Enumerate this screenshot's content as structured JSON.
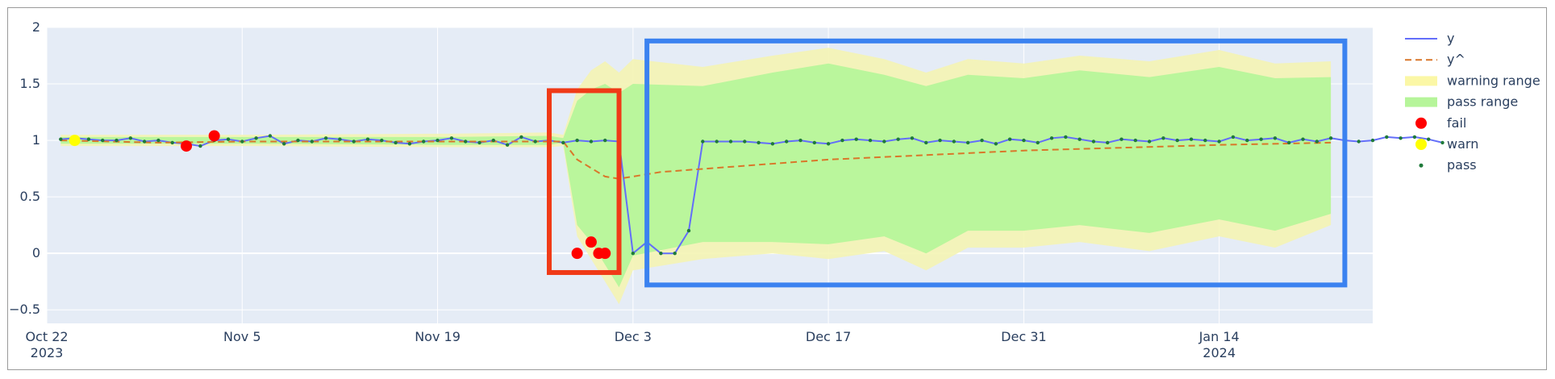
{
  "chart_data": {
    "type": "line",
    "x_axis": {
      "type": "date",
      "range": [
        "2023-10-22",
        "2024-01-25"
      ],
      "ticks": [
        {
          "date": "2023-10-22",
          "label": "Oct 22",
          "sub": "2023"
        },
        {
          "date": "2023-11-05",
          "label": "Nov 5",
          "sub": ""
        },
        {
          "date": "2023-11-19",
          "label": "Nov 19",
          "sub": ""
        },
        {
          "date": "2023-12-03",
          "label": "Dec 3",
          "sub": ""
        },
        {
          "date": "2023-12-17",
          "label": "Dec 17",
          "sub": ""
        },
        {
          "date": "2023-12-31",
          "label": "Dec 31",
          "sub": ""
        },
        {
          "date": "2024-01-14",
          "label": "Jan 14",
          "sub": "2024"
        }
      ]
    },
    "y_axis": {
      "range": [
        -0.62,
        2.0
      ],
      "ticks": [
        -0.5,
        0,
        0.5,
        1,
        1.5,
        2
      ],
      "tick_labels": [
        "−0.5",
        "0",
        "0.5",
        "1",
        "1.5",
        "2"
      ]
    },
    "grid": true,
    "legend_position": "right",
    "legend": [
      {
        "key": "y",
        "label": "y",
        "symbol": "line",
        "color": "#636efa"
      },
      {
        "key": "yhat",
        "label": "y^",
        "symbol": "dash",
        "color": "#d9772a"
      },
      {
        "key": "warning",
        "label": "warning range",
        "symbol": "band",
        "color": "#fbf7a6"
      },
      {
        "key": "pass_range",
        "label": "pass range",
        "symbol": "band",
        "color": "#b6f59a"
      },
      {
        "key": "fail",
        "label": "fail",
        "symbol": "dot-large",
        "color": "#ff0000"
      },
      {
        "key": "warn",
        "label": "warn",
        "symbol": "dot-large",
        "color": "#ffff00"
      },
      {
        "key": "pass",
        "label": "pass",
        "symbol": "dot-small",
        "color": "#1f7a3a"
      }
    ],
    "series": {
      "y": {
        "start": "2023-10-23",
        "values": [
          1.01,
          1.02,
          1.01,
          1.0,
          1.0,
          1.02,
          0.99,
          1.0,
          0.98,
          0.97,
          0.95,
          1.0,
          1.01,
          0.99,
          1.02,
          1.04,
          0.97,
          1.0,
          0.99,
          1.02,
          1.01,
          0.99,
          1.01,
          1.0,
          0.98,
          0.97,
          0.99,
          1.0,
          1.02,
          0.99,
          0.98,
          1.0,
          0.96,
          1.03,
          0.99,
          1.0,
          0.98,
          1.0,
          0.99,
          1.0,
          0.99,
          0.0,
          0.1,
          0.0,
          0.0,
          0.2,
          0.99,
          0.99,
          0.99,
          0.99,
          0.98,
          0.97,
          0.99,
          1.0,
          0.98,
          0.97,
          1.0,
          1.01,
          1.0,
          0.99,
          1.01,
          1.02,
          0.98,
          1.0,
          0.99,
          0.98,
          1.0,
          0.97,
          1.01,
          1.0,
          0.98,
          1.02,
          1.03,
          1.01,
          0.99,
          0.98,
          1.01,
          1.0,
          0.99,
          1.02,
          1.0,
          1.01,
          1.0,
          0.99,
          1.03,
          1.0,
          1.01,
          1.02,
          0.98,
          1.01,
          0.99,
          1.02,
          1.0,
          0.99,
          1.0,
          1.03,
          1.02,
          1.03,
          1.01,
          0.98
        ]
      },
      "yhat": {
        "points": [
          [
            "2023-10-23",
            1.0
          ],
          [
            "2023-10-30",
            0.98
          ],
          [
            "2023-11-05",
            0.99
          ],
          [
            "2023-11-19",
            0.99
          ],
          [
            "2023-11-28",
            0.99
          ],
          [
            "2023-11-29",
            0.83
          ],
          [
            "2023-12-01",
            0.68
          ],
          [
            "2023-12-02",
            0.66
          ],
          [
            "2023-12-05",
            0.72
          ],
          [
            "2023-12-17",
            0.83
          ],
          [
            "2023-12-31",
            0.91
          ],
          [
            "2024-01-14",
            0.96
          ],
          [
            "2024-01-22",
            0.98
          ]
        ]
      },
      "warning": {
        "points": [
          [
            "2023-10-23",
            1.05,
            0.95
          ],
          [
            "2023-11-06",
            1.05,
            0.95
          ],
          [
            "2023-11-20",
            1.06,
            0.94
          ],
          [
            "2023-11-27",
            1.07,
            0.94
          ],
          [
            "2023-11-28",
            1.05,
            0.95
          ],
          [
            "2023-11-29",
            1.45,
            0.15
          ],
          [
            "2023-11-30",
            1.62,
            -0.05
          ],
          [
            "2023-12-01",
            1.7,
            -0.25
          ],
          [
            "2023-12-02",
            1.6,
            -0.45
          ],
          [
            "2023-12-03",
            1.72,
            -0.15
          ],
          [
            "2023-12-08",
            1.65,
            -0.05
          ],
          [
            "2023-12-13",
            1.75,
            0.0
          ],
          [
            "2023-12-17",
            1.82,
            -0.05
          ],
          [
            "2023-12-21",
            1.72,
            0.02
          ],
          [
            "2023-12-24",
            1.6,
            -0.15
          ],
          [
            "2023-12-27",
            1.72,
            0.05
          ],
          [
            "2023-12-31",
            1.68,
            0.05
          ],
          [
            "2024-01-04",
            1.75,
            0.1
          ],
          [
            "2024-01-09",
            1.7,
            0.02
          ],
          [
            "2024-01-14",
            1.8,
            0.15
          ],
          [
            "2024-01-18",
            1.68,
            0.05
          ],
          [
            "2024-01-22",
            1.7,
            0.25
          ]
        ]
      },
      "pass_range": {
        "points": [
          [
            "2023-10-23",
            1.03,
            0.97
          ],
          [
            "2023-11-06",
            1.03,
            0.97
          ],
          [
            "2023-11-20",
            1.03,
            0.96
          ],
          [
            "2023-11-27",
            1.04,
            0.96
          ],
          [
            "2023-11-28",
            1.02,
            0.98
          ],
          [
            "2023-11-29",
            1.35,
            0.25
          ],
          [
            "2023-11-30",
            1.45,
            0.1
          ],
          [
            "2023-12-01",
            1.5,
            -0.1
          ],
          [
            "2023-12-02",
            1.42,
            -0.3
          ],
          [
            "2023-12-03",
            1.5,
            -0.02
          ],
          [
            "2023-12-08",
            1.48,
            0.1
          ],
          [
            "2023-12-13",
            1.6,
            0.1
          ],
          [
            "2023-12-17",
            1.68,
            0.08
          ],
          [
            "2023-12-21",
            1.58,
            0.15
          ],
          [
            "2023-12-24",
            1.48,
            0.0
          ],
          [
            "2023-12-27",
            1.58,
            0.2
          ],
          [
            "2023-12-31",
            1.55,
            0.2
          ],
          [
            "2024-01-04",
            1.62,
            0.25
          ],
          [
            "2024-01-09",
            1.56,
            0.18
          ],
          [
            "2024-01-14",
            1.65,
            0.3
          ],
          [
            "2024-01-18",
            1.55,
            0.2
          ],
          [
            "2024-01-22",
            1.56,
            0.35
          ]
        ]
      },
      "fail": {
        "points": [
          [
            "2023-11-01",
            0.95
          ],
          [
            "2023-11-03",
            1.04
          ],
          [
            "2023-11-29",
            0.0
          ],
          [
            "2023-11-30",
            0.1
          ],
          [
            "2023-11-30",
            0.0
          ],
          [
            "2023-12-01",
            0.0
          ]
        ]
      },
      "warn": {
        "points": [
          [
            "2023-10-24",
            1.0
          ]
        ]
      }
    }
  },
  "annotations": [
    {
      "name": "red-highlight-box",
      "color": "#f03a17",
      "x_range": [
        "2023-11-27",
        "2023-12-02"
      ],
      "y_range": [
        -0.17,
        1.44
      ]
    },
    {
      "name": "blue-highlight-box",
      "color": "#3b82f0",
      "x_range": [
        "2023-12-04",
        "2024-01-23"
      ],
      "y_range": [
        -0.28,
        1.88
      ]
    }
  ]
}
